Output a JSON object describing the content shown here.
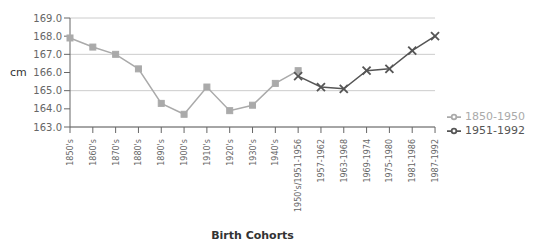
{
  "chart_data": {
    "type": "line",
    "xlabel": "Birth Cohorts",
    "ylabel": "cm",
    "categories": [
      "1850's",
      "1860's",
      "1870's",
      "1880's",
      "1890's",
      "1900's",
      "1910's",
      "1920's",
      "1930's",
      "1940's",
      "1950's/1951-1956",
      "1957-1962",
      "1963-1968",
      "1969-1974",
      "1975-1980",
      "1981-1986",
      "1987-1992"
    ],
    "series": [
      {
        "name": "1850-1950",
        "color": "#aaaaaa",
        "marker": "square",
        "values": [
          167.9,
          167.4,
          167.0,
          166.2,
          164.3,
          163.7,
          165.2,
          163.9,
          164.2,
          165.4,
          166.1,
          null,
          null,
          null,
          null,
          null,
          null
        ]
      },
      {
        "name": "1951-1992",
        "color": "#555555",
        "marker": "x",
        "values": [
          null,
          null,
          null,
          null,
          null,
          null,
          null,
          null,
          null,
          null,
          165.8,
          165.2,
          165.1,
          166.1,
          166.2,
          167.2,
          168.0
        ]
      }
    ],
    "ylim": [
      163.0,
      169.0
    ],
    "yticks": [
      {
        "value": 163,
        "label": "163.0"
      },
      {
        "value": 164,
        "label": "164.0"
      },
      {
        "value": 165,
        "label": "165.0"
      },
      {
        "value": 166,
        "label": "166.0"
      },
      {
        "value": 167,
        "label": "167.0"
      },
      {
        "value": 168,
        "label": "168.0"
      },
      {
        "value": 169,
        "label": "169.0"
      }
    ],
    "grid": true,
    "legend": "right"
  }
}
